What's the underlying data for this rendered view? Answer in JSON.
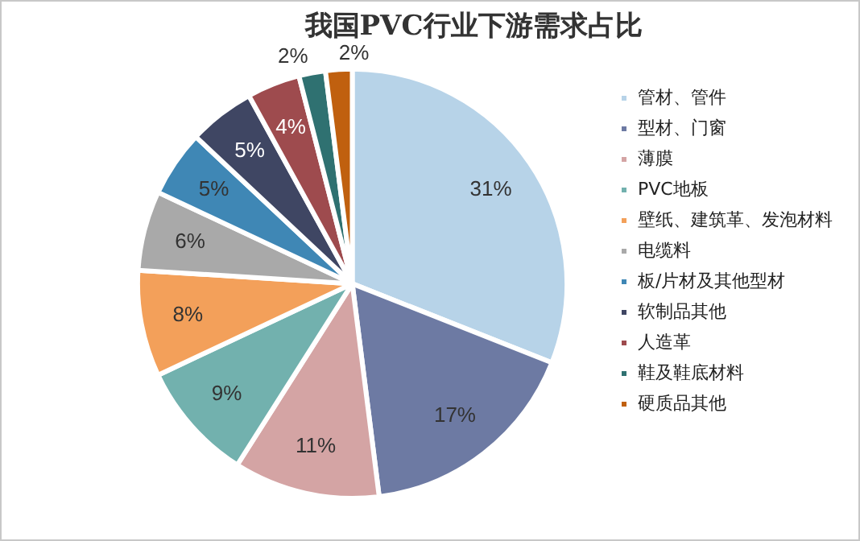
{
  "chart_data": {
    "type": "pie",
    "title": "我国PVC行业下游需求占比",
    "categories": [
      "管材、管件",
      "型材、门窗",
      "薄膜",
      "PVC地板",
      "壁纸、建筑革、发泡材料",
      "电缆料",
      "板/片材及其他型材",
      "软制品其他",
      "人造革",
      "鞋及鞋底材料",
      "硬质品其他"
    ],
    "values": [
      31,
      17,
      11,
      9,
      8,
      6,
      5,
      5,
      4,
      2,
      2
    ],
    "value_labels": [
      "31%",
      "17%",
      "11%",
      "9%",
      "8%",
      "6%",
      "5%",
      "5%",
      "4%",
      "2%",
      "2%"
    ],
    "colors": [
      "#b7d3e8",
      "#6d7aa3",
      "#d4a4a4",
      "#72b1ae",
      "#f3a05a",
      "#a9a9a9",
      "#3f87b5",
      "#3f4663",
      "#9e4b4e",
      "#2f7171",
      "#c0600f"
    ],
    "legend": "right"
  }
}
